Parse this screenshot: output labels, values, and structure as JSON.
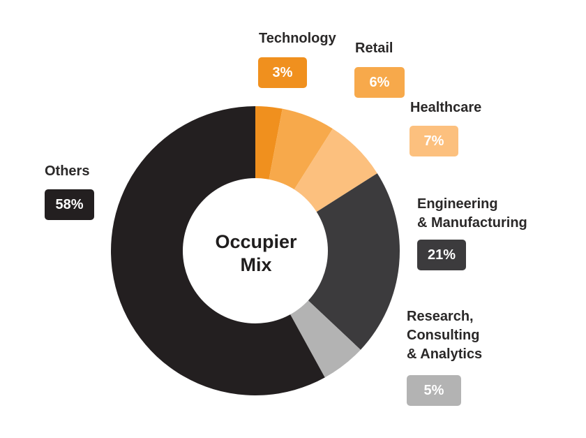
{
  "chart_data": {
    "type": "pie",
    "variant": "donut",
    "center_label": [
      "Occupier",
      "Mix"
    ],
    "slices": [
      {
        "key": "technology",
        "label": [
          "Technology"
        ],
        "value": 3,
        "value_label": "3%",
        "color": "#f0901e"
      },
      {
        "key": "retail",
        "label": [
          "Retail"
        ],
        "value": 6,
        "value_label": "6%",
        "color": "#f7a94b"
      },
      {
        "key": "healthcare",
        "label": [
          "Healthcare"
        ],
        "value": 7,
        "value_label": "7%",
        "color": "#fcc07e"
      },
      {
        "key": "engineering",
        "label": [
          "Engineering",
          "& Manufacturing"
        ],
        "value": 21,
        "value_label": "21%",
        "color": "#3c3b3d"
      },
      {
        "key": "research",
        "label": [
          "Research,",
          "Consulting",
          "& Analytics"
        ],
        "value": 5,
        "value_label": "5%",
        "color": "#b3b3b3"
      },
      {
        "key": "others",
        "label": [
          "Others"
        ],
        "value": 58,
        "value_label": "58%",
        "color": "#231f20"
      }
    ],
    "start_angle_deg": 0,
    "direction": "clockwise"
  }
}
